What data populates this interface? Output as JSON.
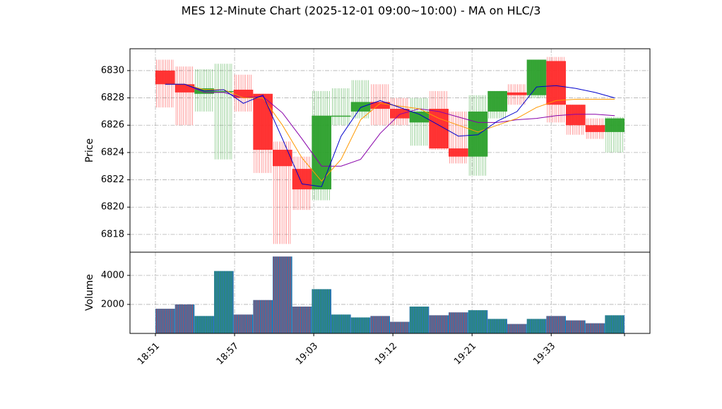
{
  "chart_data": {
    "type": "candlestick",
    "title": "MES 12-Minute Chart (2025-12-01 09:00~10:00) - MA on HLC/3",
    "ylabel_price": "Price",
    "ylabel_volume": "Volume",
    "price_ylim": [
      6816.7,
      6831.6
    ],
    "price_yticks": [
      6818,
      6820,
      6822,
      6824,
      6826,
      6828,
      6830
    ],
    "volume_ylim": [
      0,
      5600
    ],
    "volume_yticks": [
      2000,
      4000
    ],
    "xticks": [
      "18:51",
      "18:57",
      "19:03",
      "19:12",
      "19:21",
      "19:33",
      ""
    ],
    "grid": true,
    "colors": {
      "up": "#2ca02c",
      "down": "#ff2a2a",
      "ma_fast": "#0000cc",
      "ma_mid": "#ff9900",
      "ma_slow": "#8800aa",
      "volume": "#2b78b0"
    },
    "candles": [
      {
        "open": 6830.0,
        "high": 6830.8,
        "low": 6827.3,
        "close": 6829.0,
        "volume": 1700
      },
      {
        "open": 6829.0,
        "high": 6830.3,
        "low": 6826.0,
        "close": 6828.4,
        "volume": 2000
      },
      {
        "open": 6828.3,
        "high": 6830.1,
        "low": 6827.0,
        "close": 6828.7,
        "volume": 1200
      },
      {
        "open": 6828.5,
        "high": 6830.5,
        "low": 6823.5,
        "close": 6828.5,
        "volume": 4300
      },
      {
        "open": 6828.6,
        "high": 6829.7,
        "low": 6827.0,
        "close": 6828.0,
        "volume": 1300
      },
      {
        "open": 6828.3,
        "high": 6828.3,
        "low": 6822.5,
        "close": 6824.2,
        "volume": 2300
      },
      {
        "open": 6824.2,
        "high": 6824.8,
        "low": 6817.3,
        "close": 6823.0,
        "volume": 5300
      },
      {
        "open": 6822.8,
        "high": 6823.7,
        "low": 6819.8,
        "close": 6821.3,
        "volume": 1850
      },
      {
        "open": 6821.3,
        "high": 6828.5,
        "low": 6820.5,
        "close": 6826.7,
        "volume": 3050
      },
      {
        "open": 6826.7,
        "high": 6828.7,
        "low": 6826.0,
        "close": 6826.7,
        "volume": 1300
      },
      {
        "open": 6827.0,
        "high": 6829.3,
        "low": 6826.5,
        "close": 6827.7,
        "volume": 1100
      },
      {
        "open": 6827.7,
        "high": 6829.0,
        "low": 6826.0,
        "close": 6827.2,
        "volume": 1200
      },
      {
        "open": 6827.2,
        "high": 6828.0,
        "low": 6826.0,
        "close": 6826.5,
        "volume": 800
      },
      {
        "open": 6826.2,
        "high": 6828.0,
        "low": 6824.5,
        "close": 6827.0,
        "volume": 1850
      },
      {
        "open": 6827.2,
        "high": 6828.5,
        "low": 6824.2,
        "close": 6824.3,
        "volume": 1250
      },
      {
        "open": 6824.3,
        "high": 6827.0,
        "low": 6823.2,
        "close": 6823.7,
        "volume": 1450
      },
      {
        "open": 6823.7,
        "high": 6828.2,
        "low": 6822.3,
        "close": 6827.0,
        "volume": 1600
      },
      {
        "open": 6827.0,
        "high": 6828.5,
        "low": 6826.5,
        "close": 6828.5,
        "volume": 1000
      },
      {
        "open": 6828.4,
        "high": 6829.0,
        "low": 6827.5,
        "close": 6828.2,
        "volume": 650
      },
      {
        "open": 6828.2,
        "high": 6830.8,
        "low": 6828.0,
        "close": 6830.8,
        "volume": 1000
      },
      {
        "open": 6830.7,
        "high": 6831.0,
        "low": 6826.2,
        "close": 6827.5,
        "volume": 1200
      },
      {
        "open": 6827.5,
        "high": 6827.5,
        "low": 6825.3,
        "close": 6826.0,
        "volume": 900
      },
      {
        "open": 6826.0,
        "high": 6826.5,
        "low": 6825.0,
        "close": 6825.5,
        "volume": 700
      },
      {
        "open": 6825.5,
        "high": 6826.6,
        "low": 6824.0,
        "close": 6826.5,
        "volume": 1250
      }
    ],
    "ma_fast": [
      6829.0,
      6829.0,
      6828.5,
      6828.6,
      6827.6,
      6828.2,
      6825.0,
      6821.7,
      6821.5,
      6825.2,
      6827.3,
      6827.8,
      6827.3,
      6826.8,
      6826.0,
      6825.2,
      6825.3,
      6826.3,
      6827.0,
      6828.8,
      6828.9,
      6828.7,
      6828.4,
      6828.0
    ],
    "ma_mid": [
      6829.0,
      6829.0,
      6828.6,
      6828.6,
      6828.0,
      6828.0,
      6826.0,
      6823.6,
      6821.9,
      6823.5,
      6826.4,
      6827.6,
      6827.4,
      6827.2,
      6826.5,
      6826.0,
      6825.5,
      6826.0,
      6826.5,
      6827.3,
      6827.8,
      6827.9,
      6827.9,
      6827.9
    ],
    "ma_slow": [
      6829.0,
      6829.0,
      6828.4,
      6828.4,
      6828.0,
      6828.1,
      6826.9,
      6825.0,
      6823.0,
      6823.0,
      6823.5,
      6825.4,
      6826.8,
      6827.2,
      6827.0,
      6826.6,
      6826.2,
      6826.2,
      6826.4,
      6826.5,
      6826.7,
      6826.8,
      6826.8,
      6826.7
    ]
  }
}
